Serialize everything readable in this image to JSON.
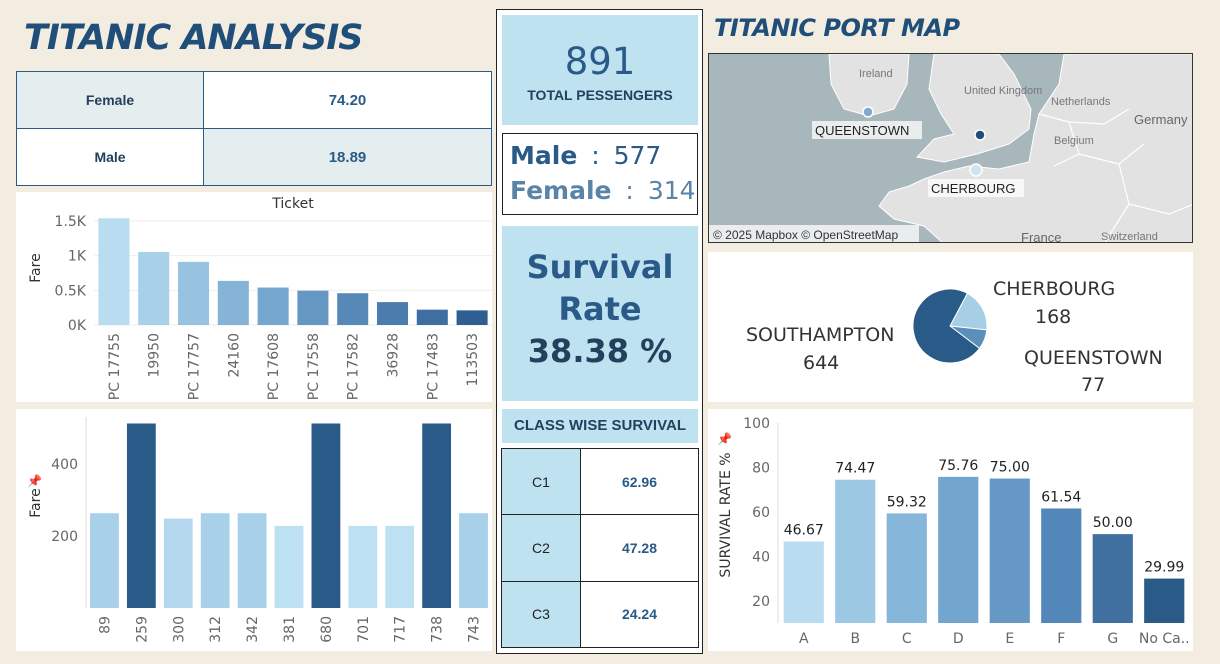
{
  "title": "TITANIC ANALYSIS",
  "map_title": "TITANIC PORT MAP",
  "gender_fare": [
    {
      "label": "Female",
      "value": "74.20"
    },
    {
      "label": "Male",
      "value": "18.89"
    }
  ],
  "kpi": {
    "total_count": "891",
    "total_label": "TOTAL PESSENGERS",
    "male_label": "Male",
    "male_count": "577",
    "female_label": "Female",
    "female_count": "314",
    "colon": ":",
    "survival_line1": "Survival",
    "survival_line2": "Rate",
    "survival_value": "38.38 %"
  },
  "class_survival": {
    "header": "CLASS WISE SURVIVAL",
    "rows": [
      {
        "cls": "C1",
        "value": "62.96"
      },
      {
        "cls": "C2",
        "value": "47.28"
      },
      {
        "cls": "C3",
        "value": "24.24"
      }
    ]
  },
  "map": {
    "countries": [
      "Ireland",
      "United Kingdom",
      "Netherlands",
      "Belgium",
      "Germany",
      "France",
      "Switzerland"
    ],
    "ports": [
      "QUEENSTOWN",
      "CHERBOURG"
    ],
    "attribution": "© 2025 Mapbox © OpenStreetMap",
    "sea_color": "#a8b7bb",
    "land_color": "#e2e2e2"
  },
  "port_pie": {
    "labels": [
      {
        "name": "SOUTHAMPTON",
        "count": "644"
      },
      {
        "name": "CHERBOURG",
        "count": "168"
      },
      {
        "name": "QUEENSTOWN",
        "count": "77"
      }
    ],
    "values": [
      644,
      168,
      77
    ],
    "colors": [
      "#2a5a87",
      "#a6cfe6",
      "#5b8eb8"
    ]
  },
  "chart_data": [
    {
      "type": "bar",
      "title": "Ticket",
      "ylabel": "Fare",
      "categories": [
        "PC 17755",
        "19950",
        "PC 17757",
        "24160",
        "PC 17608",
        "PC 17558",
        "PC 17582",
        "36928",
        "PC 17483",
        "113503"
      ],
      "values": [
        1538,
        1053,
        910,
        636,
        540,
        495,
        458,
        330,
        221,
        211
      ],
      "colors": [
        "#b9dcf0",
        "#a8d0e9",
        "#98c3e0",
        "#86b4d6",
        "#75a6cd",
        "#6597c3",
        "#5688b8",
        "#4a7cad",
        "#3e6fa0",
        "#2f5f92"
      ],
      "ytick_labels": [
        "1.5K",
        "1K",
        "0.5K",
        "0K"
      ],
      "ytick_values": [
        1500,
        1000,
        500,
        0
      ],
      "ylim": [
        0,
        1600
      ]
    },
    {
      "type": "bar",
      "ylabel": "Fare",
      "categories": [
        "89",
        "259",
        "300",
        "312",
        "342",
        "381",
        "680",
        "701",
        "717",
        "738",
        "743"
      ],
      "values": [
        263,
        512,
        248,
        263,
        263,
        228,
        512,
        228,
        228,
        512,
        263
      ],
      "colors": [
        "#a8d0e9",
        "#2a5a87",
        "#b5d8ee",
        "#a8d0e9",
        "#a8d0e9",
        "#bde0f2",
        "#2a5a87",
        "#bde0f2",
        "#bde0f2",
        "#2a5a87",
        "#a8d0e9"
      ],
      "ytick_labels": [
        "400",
        "200"
      ],
      "ytick_values": [
        400,
        200
      ],
      "ylim": [
        0,
        530
      ]
    },
    {
      "type": "bar",
      "ylabel": "SURVIVAL RATE %",
      "categories": [
        "A",
        "B",
        "C",
        "D",
        "E",
        "F",
        "G",
        "No Ca.."
      ],
      "values": [
        46.67,
        74.47,
        59.32,
        75.76,
        75.0,
        61.54,
        50.0,
        29.99
      ],
      "value_labels": [
        "46.67",
        "74.47",
        "59.32",
        "75.76",
        "75.00",
        "61.54",
        "50.00",
        "29.99"
      ],
      "colors": [
        "#b9dcf0",
        "#9cc8e3",
        "#86b6d9",
        "#73a6cf",
        "#6598c4",
        "#5387b9",
        "#40709f",
        "#2a5a87"
      ],
      "ytick_labels": [
        "100",
        "80",
        "60",
        "40",
        "20"
      ],
      "ytick_values": [
        100,
        80,
        60,
        40,
        20
      ],
      "ylim": [
        10,
        100
      ]
    }
  ]
}
